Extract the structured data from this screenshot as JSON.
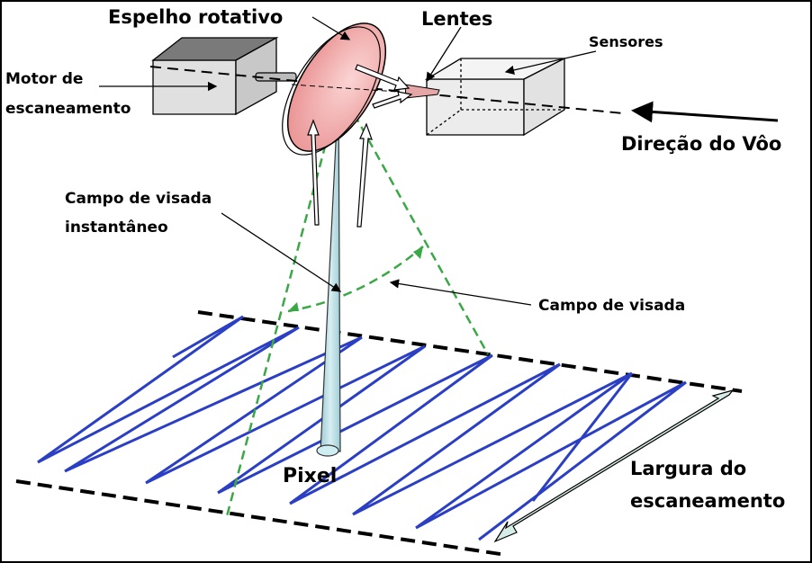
{
  "labels": {
    "mirror": "Espelho rotativo",
    "lens": "Lentes",
    "sensors": "Sensores",
    "motor_line1": "Motor de",
    "motor_line2": "escaneamento",
    "flight_direction": "Direção do Vôo",
    "ifov_line1": "Campo de visada",
    "ifov_line2": "instantâneo",
    "fov": "Campo de visada",
    "pixel": "Pixel",
    "swath_line1": "Largura do",
    "swath_line2": "escaneamento"
  },
  "colors": {
    "scan_lines": "#2a3fc4",
    "fov_dashed": "#3aa845",
    "mirror_fill": "#f3b3b3",
    "ifov_beam": "#b8dde3",
    "swath_arrow": "#cfe7e2",
    "box_fill": "#e0e0e0"
  },
  "icons": {
    "flight_arrow": "arrow-left-icon",
    "swath_arrow": "double-arrow-icon"
  }
}
